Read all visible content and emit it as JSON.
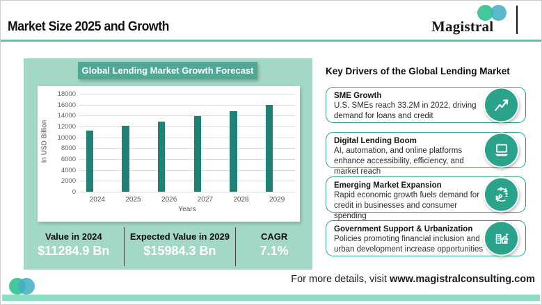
{
  "header": {
    "title": "Market Size 2025 and Growth",
    "brand": "Magistral"
  },
  "chart_data": {
    "type": "bar",
    "title": "Global Lending Market Growth Forecast",
    "categories": [
      "2024",
      "2025",
      "2026",
      "2027",
      "2028",
      "2029"
    ],
    "values": [
      11284.9,
      12086,
      12944,
      13863,
      14847,
      15984.3
    ],
    "xlabel": "Years",
    "ylabel": "In USD Billion",
    "ylim": [
      0,
      18000
    ],
    "ytick_step": 2000,
    "bar_color": "#1f8274",
    "grid": true,
    "legend": "none"
  },
  "chart_panel": {
    "stats": [
      {
        "label": "Value in 2024",
        "value": "$11284.9 Bn"
      },
      {
        "label": "Expected Value in 2029",
        "value": "$15984.3 Bn"
      },
      {
        "label": "CAGR",
        "value": "7.1%"
      }
    ]
  },
  "key_drivers": {
    "heading": "Key Drivers of the Global Lending Market",
    "cards": [
      {
        "title": "SME Growth",
        "body": "U.S. SMEs reach 33.2M in 2022, driving demand for loans and credit",
        "icon": "trend-up-icon"
      },
      {
        "title": "Digital Lending Boom",
        "body": "AI, automation, and online platforms enhance accessibility, efficiency, and market reach",
        "icon": "laptop-icon"
      },
      {
        "title": "Emerging Market Expansion",
        "body": "Rapid economic growth fuels demand for credit in businesses and consumer spending",
        "icon": "economic-exchange-icon"
      },
      {
        "title": "Government Support & Urbanization",
        "body": "Policies promoting financial inclusion and urban development increase opportunities",
        "icon": "city-buildings-icon"
      }
    ]
  },
  "footer": {
    "prefix": "For more details, visit ",
    "url": "www.magistralconsulting.com"
  },
  "colors": {
    "accent_teal": "#2ba28b",
    "panel_mint": "#a2d8c5",
    "banner_teal": "#4fa794",
    "bar_teal": "#1f8274",
    "rule_teal": "#54c7a9",
    "strip_mint": "#8ddcc3",
    "logo_green": "#45c79d",
    "logo_blue_teal": "#47aec2"
  }
}
